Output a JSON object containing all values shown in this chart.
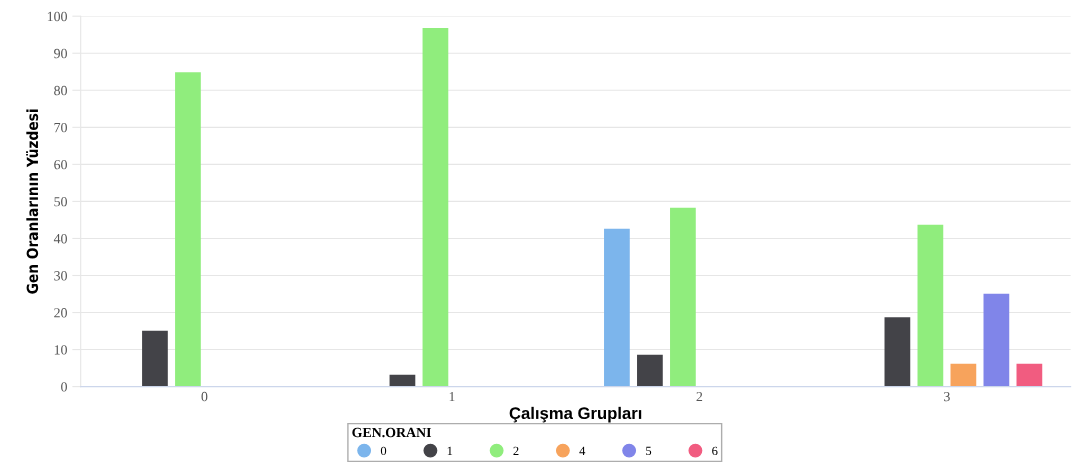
{
  "chart_data": {
    "type": "bar",
    "xlabel": "Çalışma Grupları",
    "ylabel": "Gen Oranlarının Yüzdesi",
    "legend_title": "GEN.ORANI",
    "categories": [
      "0",
      "1",
      "2",
      "3"
    ],
    "series": [
      {
        "name": "0",
        "color": "#7cb5ec",
        "values": [
          null,
          null,
          42.6,
          null
        ]
      },
      {
        "name": "1",
        "color": "#434348",
        "values": [
          15.1,
          3.2,
          8.6,
          18.7
        ]
      },
      {
        "name": "2",
        "color": "#90ed7d",
        "values": [
          84.9,
          96.8,
          48.3,
          43.7
        ]
      },
      {
        "name": "4",
        "color": "#f7a35c",
        "values": [
          null,
          null,
          null,
          6.2
        ]
      },
      {
        "name": "5",
        "color": "#8085e9",
        "values": [
          null,
          null,
          null,
          25.1
        ]
      },
      {
        "name": "6",
        "color": "#f15c80",
        "values": [
          null,
          null,
          null,
          6.2
        ]
      }
    ],
    "ylim": [
      0,
      100
    ],
    "yticks": [
      0,
      10,
      20,
      30,
      40,
      50,
      60,
      70,
      80,
      90,
      100
    ],
    "grid": "y",
    "legend": "bottom",
    "marker": "circle"
  }
}
